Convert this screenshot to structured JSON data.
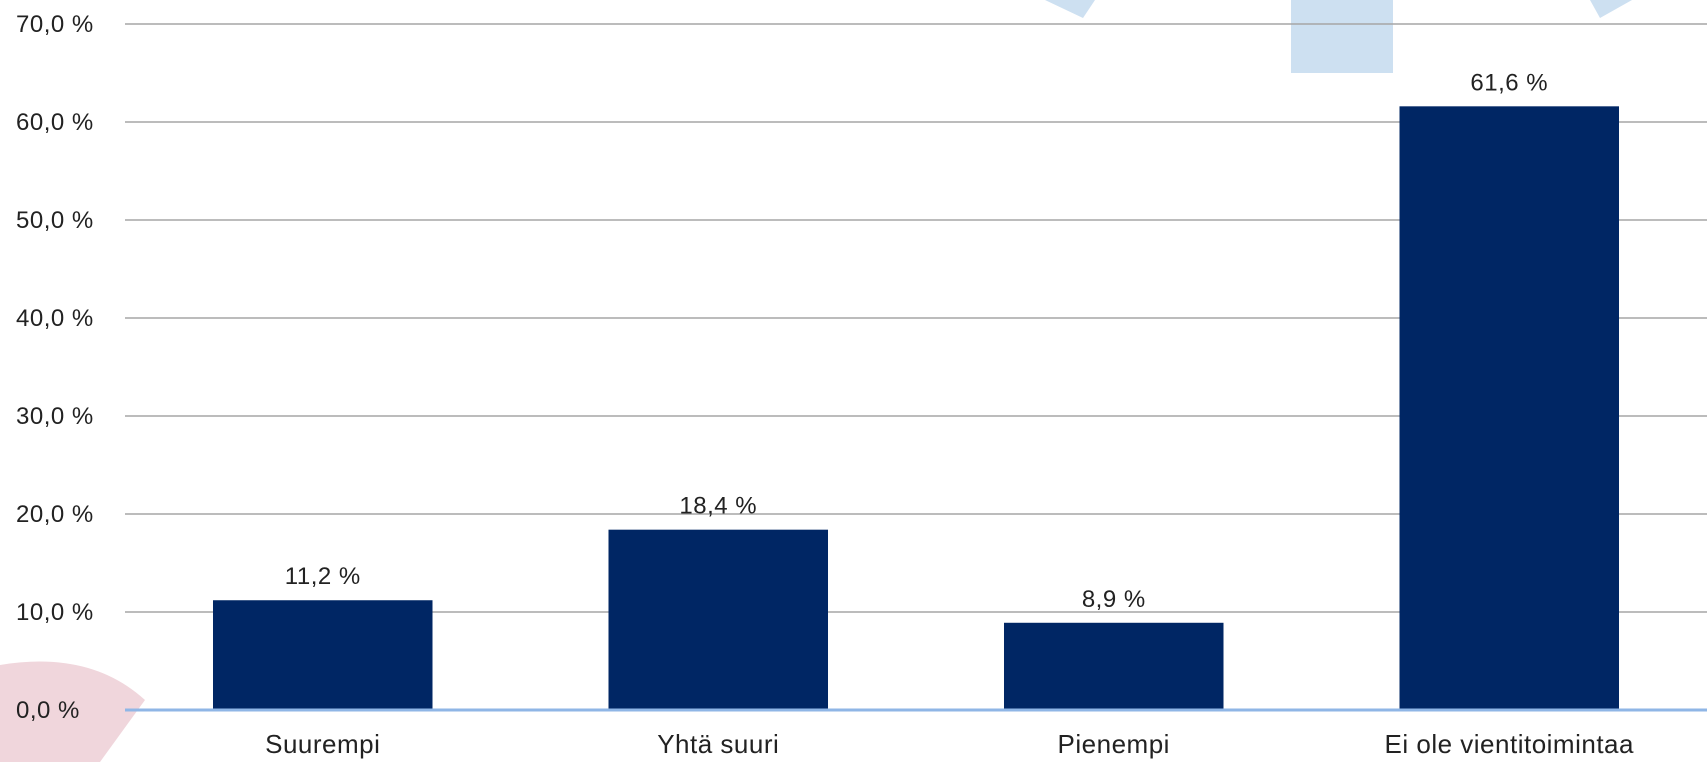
{
  "colors": {
    "bar": "#002664",
    "grid": "#a6a6a6",
    "baseline": "#8fb6e6",
    "deco_blue": "#cde0f1",
    "deco_pink": "#f0d6dc",
    "text": "#222222"
  },
  "chart_data": {
    "type": "bar",
    "title": "",
    "xlabel": "",
    "ylabel": "",
    "ylim": [
      0,
      70
    ],
    "yticks": [
      {
        "value": 0,
        "label": "0,0 %"
      },
      {
        "value": 10,
        "label": "10,0 %"
      },
      {
        "value": 20,
        "label": "20,0 %"
      },
      {
        "value": 30,
        "label": "30,0 %"
      },
      {
        "value": 40,
        "label": "40,0 %"
      },
      {
        "value": 50,
        "label": "50,0 %"
      },
      {
        "value": 60,
        "label": "60,0 %"
      },
      {
        "value": 70,
        "label": "70,0 %"
      }
    ],
    "categories": [
      "Suurempi",
      "Yhtä suuri",
      "Pienempi",
      "Ei ole vientitoimintaa"
    ],
    "values": [
      11.2,
      18.4,
      8.9,
      61.6
    ],
    "value_labels": [
      "11,2 %",
      "18,4 %",
      "8,9 %",
      "61,6 %"
    ],
    "grid": true,
    "legend": "none"
  }
}
